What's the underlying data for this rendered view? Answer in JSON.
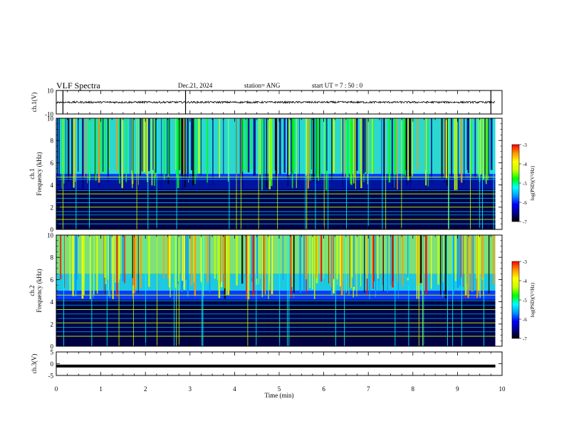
{
  "header": {
    "title": "VLF Spectra",
    "date": "Dec.21, 2024",
    "station": "station= ANG",
    "start": "start  UT =   7 : 50 : 0"
  },
  "chart_data": [
    {
      "type": "line",
      "panel": "ch1-waveform",
      "ylabel": "ch.1(V)",
      "ylim": [
        -10,
        10
      ],
      "yticks": [
        "10",
        "-10"
      ],
      "baseline": 0,
      "spikes_x_min": [
        0.15,
        2.9,
        9.75
      ]
    },
    {
      "type": "heatmap",
      "panel": "ch1-spectrogram",
      "ylabel": "ch.1\nFrequency (kHz)",
      "ylabel_top": "ch.1",
      "ylabel_bottom": "Frequency (kHz)",
      "ylim": [
        0,
        10
      ],
      "yticks": [
        "0",
        "2",
        "4",
        "6",
        "8",
        "10"
      ],
      "xlim": [
        0,
        9.85
      ],
      "colorbar": {
        "label": "log(PSD)(V²/Hz)",
        "ticks": [
          "-3",
          "-4",
          "-5",
          "-6",
          "-7"
        ],
        "range": [
          -7,
          -3
        ]
      }
    },
    {
      "type": "heatmap",
      "panel": "ch2-spectrogram",
      "ylabel_top": "ch.2",
      "ylabel_bottom": "Frequency (kHz)",
      "ylim": [
        0,
        10
      ],
      "yticks": [
        "0",
        "2",
        "4",
        "6",
        "8",
        "10"
      ],
      "xlim": [
        0,
        9.85
      ],
      "colorbar": {
        "label": "log(PSD)(V²/Hz)",
        "ticks": [
          "-3",
          "-4",
          "-5",
          "-6",
          "-7"
        ],
        "range": [
          -7,
          -3
        ]
      }
    },
    {
      "type": "line",
      "panel": "ch3-waveform",
      "ylabel": "ch.3(V)",
      "ylim": [
        -5,
        5
      ],
      "yticks": [
        "5",
        "0",
        "-5"
      ],
      "baseline": -1
    }
  ],
  "xaxis": {
    "label": "Time  (min)",
    "range": [
      0,
      10
    ],
    "ticks": [
      "0",
      "1",
      "2",
      "3",
      "4",
      "5",
      "6",
      "7",
      "8",
      "9",
      "10"
    ]
  },
  "colors": {
    "colormap": [
      "#000000",
      "#00008b",
      "#0000ff",
      "#0096ff",
      "#00ffff",
      "#00ff00",
      "#c8ff00",
      "#ffff00",
      "#ff9600",
      "#ff0000"
    ]
  }
}
